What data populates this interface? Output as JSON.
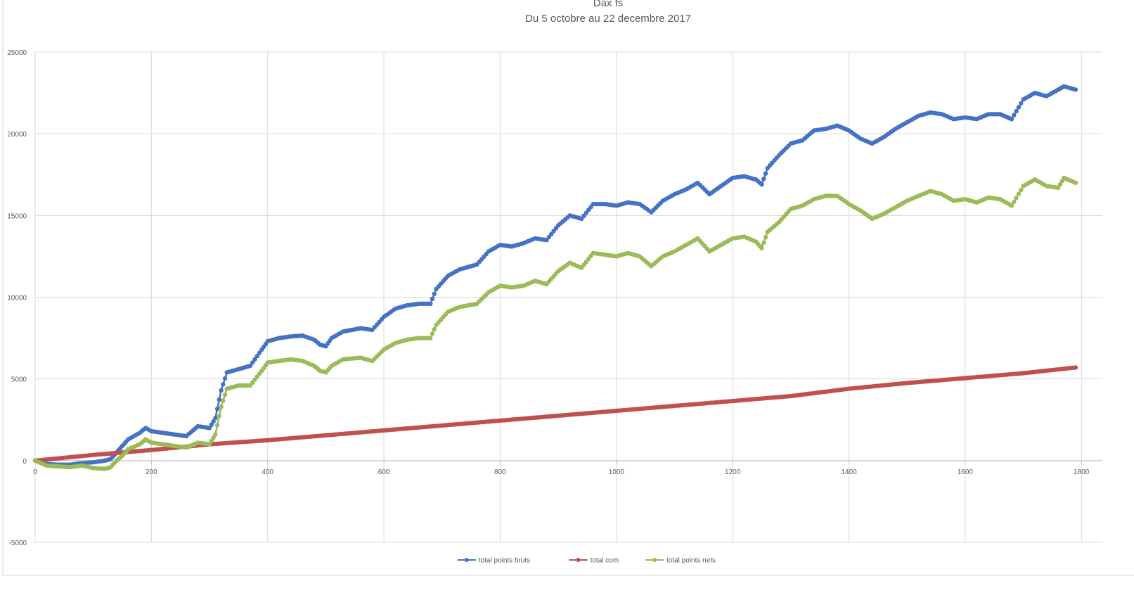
{
  "chart_data": {
    "type": "line",
    "title": "Dax fs",
    "subtitle": "Du 5 octobre au 22 decembre 2017",
    "xlabel": "",
    "ylabel": "",
    "xlim": [
      0,
      1800
    ],
    "ylim": [
      -5000,
      25000
    ],
    "x_ticks": [
      0,
      200,
      400,
      600,
      800,
      1000,
      1200,
      1400,
      1600,
      1800
    ],
    "y_ticks": [
      -5000,
      0,
      5000,
      10000,
      15000,
      20000,
      25000
    ],
    "grid": true,
    "legend_position": "bottom",
    "series": [
      {
        "name": "total points bruts",
        "color": "#4472c4",
        "points": [
          [
            0,
            0
          ],
          [
            20,
            -200
          ],
          [
            40,
            -250
          ],
          [
            60,
            -250
          ],
          [
            80,
            -150
          ],
          [
            100,
            -100
          ],
          [
            120,
            0
          ],
          [
            130,
            100
          ],
          [
            140,
            500
          ],
          [
            150,
            900
          ],
          [
            160,
            1300
          ],
          [
            180,
            1700
          ],
          [
            190,
            2000
          ],
          [
            200,
            1800
          ],
          [
            220,
            1700
          ],
          [
            240,
            1600
          ],
          [
            260,
            1500
          ],
          [
            280,
            2100
          ],
          [
            300,
            2000
          ],
          [
            310,
            2600
          ],
          [
            320,
            4300
          ],
          [
            330,
            5400
          ],
          [
            350,
            5600
          ],
          [
            370,
            5800
          ],
          [
            390,
            6800
          ],
          [
            400,
            7300
          ],
          [
            420,
            7500
          ],
          [
            440,
            7600
          ],
          [
            460,
            7650
          ],
          [
            480,
            7400
          ],
          [
            490,
            7100
          ],
          [
            500,
            7000
          ],
          [
            510,
            7500
          ],
          [
            530,
            7900
          ],
          [
            560,
            8100
          ],
          [
            580,
            8000
          ],
          [
            600,
            8800
          ],
          [
            620,
            9300
          ],
          [
            640,
            9500
          ],
          [
            660,
            9600
          ],
          [
            680,
            9600
          ],
          [
            690,
            10500
          ],
          [
            710,
            11300
          ],
          [
            730,
            11700
          ],
          [
            760,
            12000
          ],
          [
            780,
            12800
          ],
          [
            800,
            13200
          ],
          [
            820,
            13100
          ],
          [
            840,
            13300
          ],
          [
            860,
            13600
          ],
          [
            880,
            13500
          ],
          [
            900,
            14400
          ],
          [
            920,
            15000
          ],
          [
            940,
            14800
          ],
          [
            960,
            15700
          ],
          [
            980,
            15700
          ],
          [
            1000,
            15600
          ],
          [
            1020,
            15800
          ],
          [
            1040,
            15700
          ],
          [
            1060,
            15200
          ],
          [
            1080,
            15900
          ],
          [
            1100,
            16300
          ],
          [
            1120,
            16600
          ],
          [
            1140,
            17000
          ],
          [
            1160,
            16300
          ],
          [
            1180,
            16800
          ],
          [
            1200,
            17300
          ],
          [
            1220,
            17400
          ],
          [
            1240,
            17200
          ],
          [
            1250,
            16900
          ],
          [
            1260,
            17900
          ],
          [
            1280,
            18700
          ],
          [
            1300,
            19400
          ],
          [
            1320,
            19600
          ],
          [
            1340,
            20200
          ],
          [
            1360,
            20300
          ],
          [
            1380,
            20500
          ],
          [
            1400,
            20200
          ],
          [
            1420,
            19700
          ],
          [
            1440,
            19400
          ],
          [
            1460,
            19800
          ],
          [
            1480,
            20300
          ],
          [
            1500,
            20700
          ],
          [
            1520,
            21100
          ],
          [
            1540,
            21300
          ],
          [
            1560,
            21200
          ],
          [
            1580,
            20900
          ],
          [
            1600,
            21000
          ],
          [
            1620,
            20900
          ],
          [
            1640,
            21200
          ],
          [
            1660,
            21200
          ],
          [
            1680,
            20900
          ],
          [
            1700,
            22100
          ],
          [
            1720,
            22500
          ],
          [
            1740,
            22300
          ],
          [
            1760,
            22700
          ],
          [
            1770,
            22900
          ],
          [
            1790,
            22700
          ]
        ]
      },
      {
        "name": "total com",
        "color": "#c0504d",
        "points": [
          [
            0,
            0
          ],
          [
            100,
            350
          ],
          [
            200,
            650
          ],
          [
            300,
            1000
          ],
          [
            400,
            1250
          ],
          [
            500,
            1550
          ],
          [
            600,
            1850
          ],
          [
            700,
            2150
          ],
          [
            800,
            2450
          ],
          [
            900,
            2750
          ],
          [
            1000,
            3050
          ],
          [
            1100,
            3350
          ],
          [
            1200,
            3650
          ],
          [
            1300,
            3950
          ],
          [
            1400,
            4400
          ],
          [
            1500,
            4750
          ],
          [
            1600,
            5050
          ],
          [
            1700,
            5350
          ],
          [
            1790,
            5700
          ]
        ]
      },
      {
        "name": "total points nets",
        "color": "#9bbb59",
        "points": [
          [
            0,
            0
          ],
          [
            20,
            -300
          ],
          [
            40,
            -350
          ],
          [
            60,
            -400
          ],
          [
            80,
            -300
          ],
          [
            100,
            -450
          ],
          [
            120,
            -500
          ],
          [
            130,
            -400
          ],
          [
            140,
            0
          ],
          [
            150,
            300
          ],
          [
            160,
            700
          ],
          [
            180,
            1000
          ],
          [
            190,
            1300
          ],
          [
            200,
            1100
          ],
          [
            220,
            1000
          ],
          [
            240,
            900
          ],
          [
            260,
            800
          ],
          [
            280,
            1100
          ],
          [
            300,
            1000
          ],
          [
            310,
            1600
          ],
          [
            320,
            3300
          ],
          [
            330,
            4400
          ],
          [
            350,
            4600
          ],
          [
            370,
            4600
          ],
          [
            390,
            5500
          ],
          [
            400,
            6000
          ],
          [
            420,
            6100
          ],
          [
            440,
            6200
          ],
          [
            460,
            6100
          ],
          [
            480,
            5800
          ],
          [
            490,
            5500
          ],
          [
            500,
            5400
          ],
          [
            510,
            5800
          ],
          [
            530,
            6200
          ],
          [
            560,
            6300
          ],
          [
            580,
            6100
          ],
          [
            600,
            6800
          ],
          [
            620,
            7200
          ],
          [
            640,
            7400
          ],
          [
            660,
            7500
          ],
          [
            680,
            7500
          ],
          [
            690,
            8300
          ],
          [
            710,
            9100
          ],
          [
            730,
            9400
          ],
          [
            760,
            9600
          ],
          [
            780,
            10300
          ],
          [
            800,
            10700
          ],
          [
            820,
            10600
          ],
          [
            840,
            10700
          ],
          [
            860,
            11000
          ],
          [
            880,
            10800
          ],
          [
            900,
            11600
          ],
          [
            920,
            12100
          ],
          [
            940,
            11800
          ],
          [
            960,
            12700
          ],
          [
            980,
            12600
          ],
          [
            1000,
            12500
          ],
          [
            1020,
            12700
          ],
          [
            1040,
            12500
          ],
          [
            1060,
            11900
          ],
          [
            1080,
            12500
          ],
          [
            1100,
            12800
          ],
          [
            1120,
            13200
          ],
          [
            1140,
            13600
          ],
          [
            1160,
            12800
          ],
          [
            1180,
            13200
          ],
          [
            1200,
            13600
          ],
          [
            1220,
            13700
          ],
          [
            1240,
            13400
          ],
          [
            1250,
            13000
          ],
          [
            1260,
            14000
          ],
          [
            1280,
            14600
          ],
          [
            1300,
            15400
          ],
          [
            1320,
            15600
          ],
          [
            1340,
            16000
          ],
          [
            1360,
            16200
          ],
          [
            1380,
            16200
          ],
          [
            1400,
            15700
          ],
          [
            1420,
            15300
          ],
          [
            1440,
            14800
          ],
          [
            1460,
            15100
          ],
          [
            1480,
            15500
          ],
          [
            1500,
            15900
          ],
          [
            1520,
            16200
          ],
          [
            1540,
            16500
          ],
          [
            1560,
            16300
          ],
          [
            1580,
            15900
          ],
          [
            1600,
            16000
          ],
          [
            1620,
            15800
          ],
          [
            1640,
            16100
          ],
          [
            1660,
            16000
          ],
          [
            1680,
            15600
          ],
          [
            1700,
            16800
          ],
          [
            1720,
            17200
          ],
          [
            1740,
            16800
          ],
          [
            1760,
            16700
          ],
          [
            1770,
            17300
          ],
          [
            1790,
            17000
          ]
        ]
      }
    ]
  }
}
